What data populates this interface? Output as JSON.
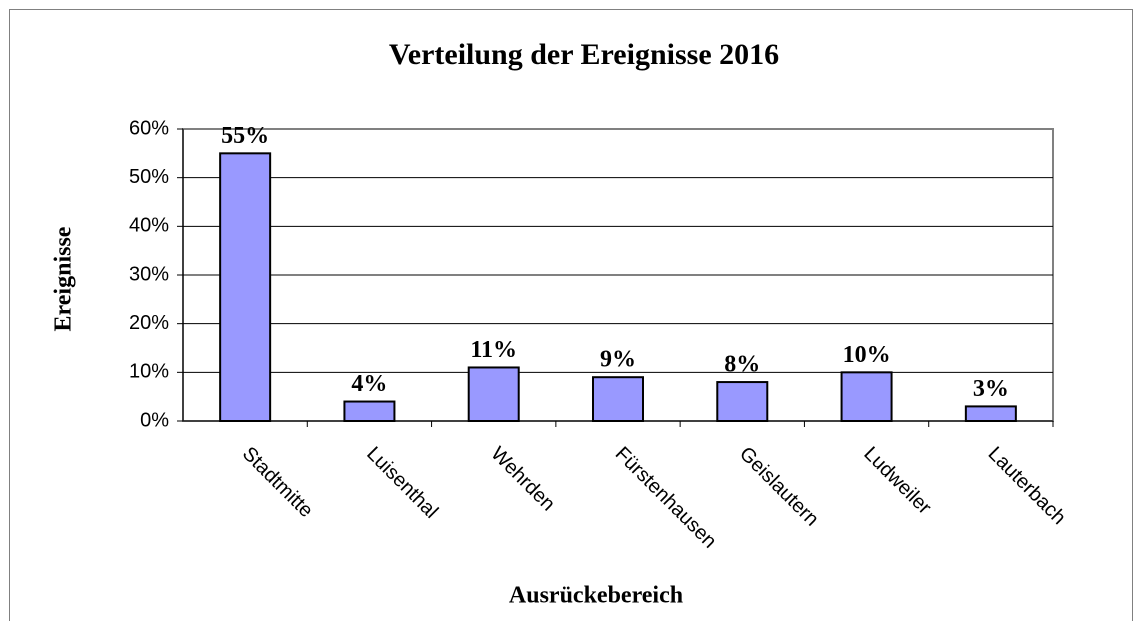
{
  "chart_data": {
    "type": "bar",
    "title": "Verteilung der Ereignisse 2016",
    "x_label": "Ausrückebereich",
    "y_label": "Ereignisse",
    "categories": [
      "Stadtmitte",
      "Luisenthal",
      "Wehrden",
      "Fürstenhausen",
      "Geislautern",
      "Ludweiler",
      "Lauterbach"
    ],
    "values": [
      55,
      4,
      11,
      9,
      8,
      10,
      3
    ],
    "value_labels": [
      "55%",
      "4%",
      "11%",
      "9%",
      "8%",
      "10%",
      "3%"
    ],
    "color": "#9999ff",
    "ylim": [
      0,
      60
    ],
    "yticks": [
      {
        "value": 0,
        "label": "0%"
      },
      {
        "value": 10,
        "label": "10%"
      },
      {
        "value": 20,
        "label": "20%"
      },
      {
        "value": 30,
        "label": "30%"
      },
      {
        "value": 40,
        "label": "40%"
      },
      {
        "value": 50,
        "label": "50%"
      },
      {
        "value": 60,
        "label": "60%"
      }
    ],
    "grid": true
  }
}
